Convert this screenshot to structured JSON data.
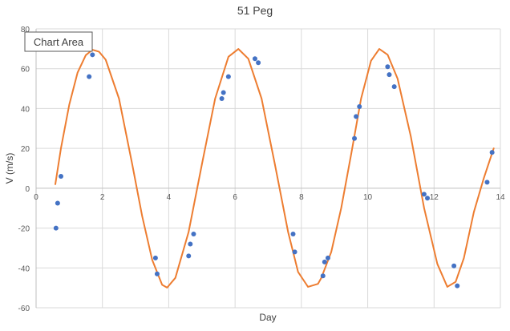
{
  "chart_data": {
    "type": "scatter",
    "title": "51 Peg",
    "xlabel": "Day",
    "ylabel": "V (m/s)",
    "xlim": [
      0,
      14
    ],
    "ylim": [
      -60,
      80
    ],
    "xticks": [
      0,
      2,
      4,
      6,
      8,
      10,
      12,
      14
    ],
    "yticks": [
      -60,
      -40,
      -20,
      0,
      20,
      40,
      60,
      80
    ],
    "grid": {
      "x": true,
      "y": true
    },
    "legend": "none",
    "colors": {
      "points": "#4472c4",
      "fit": "#ed7d31",
      "grid": "#d9d9d9",
      "axis": "#bfbfbf"
    },
    "series": [
      {
        "type": "scatter",
        "x": [
          0.6,
          0.65,
          0.75,
          1.6,
          1.7,
          3.6,
          3.65,
          4.6,
          4.65,
          4.75,
          5.6,
          5.65,
          5.8,
          6.6,
          6.7,
          7.75,
          7.8,
          8.65,
          8.7,
          8.8,
          9.6,
          9.65,
          9.75,
          10.6,
          10.65,
          10.8,
          11.7,
          11.8,
          12.6,
          12.7,
          13.6,
          13.75
        ],
        "y": [
          -20,
          -7.5,
          6,
          56,
          67,
          -35,
          -43,
          -34,
          -28,
          -23,
          45,
          48,
          56,
          65,
          63,
          -23,
          -32,
          -44,
          -37,
          -35,
          25,
          36,
          41,
          61,
          57,
          51,
          -3,
          -5,
          -39,
          -49,
          3,
          18
        ]
      },
      {
        "type": "line",
        "x": [
          0.58,
          0.75,
          1.0,
          1.25,
          1.5,
          1.7,
          1.9,
          2.1,
          2.5,
          2.9,
          3.2,
          3.5,
          3.8,
          3.95,
          4.2,
          4.6,
          5.0,
          5.4,
          5.8,
          6.1,
          6.4,
          6.8,
          7.2,
          7.6,
          7.9,
          8.2,
          8.5,
          8.6,
          8.9,
          9.2,
          9.5,
          9.8,
          10.1,
          10.35,
          10.6,
          10.9,
          11.3,
          11.7,
          12.1,
          12.4,
          12.65,
          12.9,
          13.2,
          13.5,
          13.8
        ],
        "y": [
          2.0,
          20.0,
          42.0,
          58.0,
          66.8,
          69.5,
          68.5,
          64.5,
          45.0,
          12.0,
          -14.0,
          -36.0,
          -48.5,
          -49.9,
          -45.0,
          -22.0,
          12.0,
          45.0,
          66.0,
          69.9,
          65.0,
          45.0,
          12.0,
          -22.0,
          -42.0,
          -49.5,
          -48.0,
          -45.0,
          -32.0,
          -10.0,
          17.0,
          45.0,
          64.0,
          69.9,
          67.0,
          55.0,
          26.0,
          -10.0,
          -38.0,
          -49.5,
          -47.0,
          -35.0,
          -12.0,
          5.0,
          20.0
        ]
      }
    ],
    "annotations": [
      "Chart Area"
    ]
  }
}
